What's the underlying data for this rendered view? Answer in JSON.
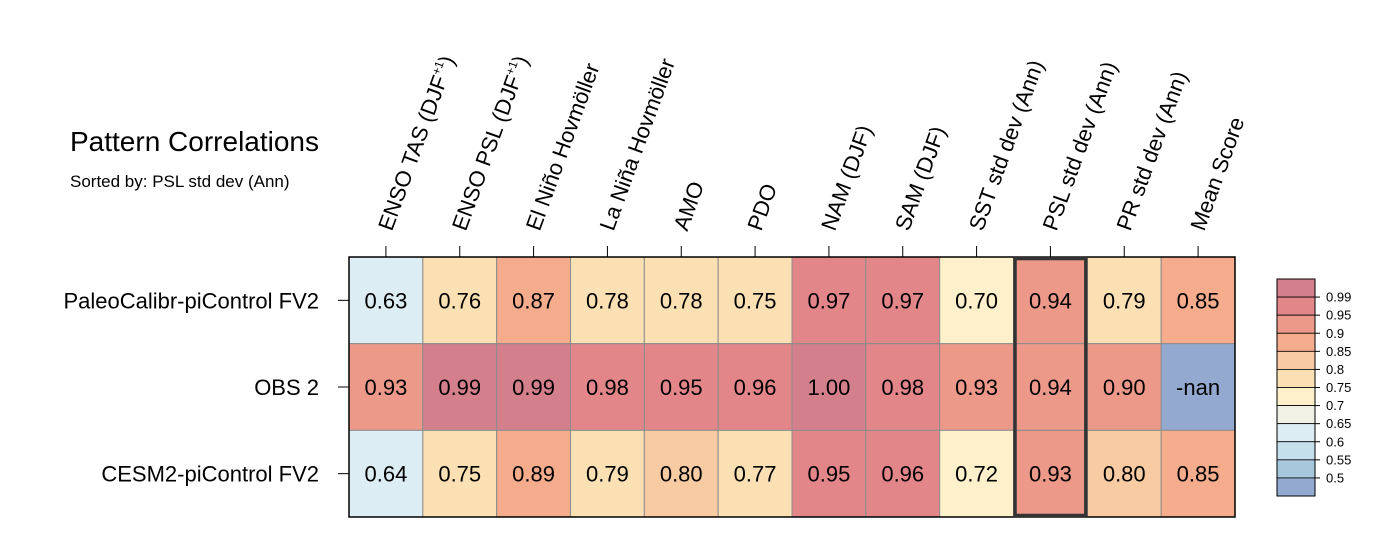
{
  "title": "Pattern Correlations",
  "subtitle": "Sorted by: PSL std dev (Ann)",
  "chart_data": {
    "type": "heatmap",
    "columns": [
      {
        "text": "ENSO TAS (DJF",
        "sup": "+1",
        "tail": ")"
      },
      {
        "text": "ENSO PSL (DJF",
        "sup": "+1",
        "tail": ")"
      },
      {
        "text": "El Niño Hovmöller",
        "sup": "",
        "tail": ""
      },
      {
        "text": "La Niña Hovmöller",
        "sup": "",
        "tail": ""
      },
      {
        "text": "AMO",
        "sup": "",
        "tail": ""
      },
      {
        "text": "PDO",
        "sup": "",
        "tail": ""
      },
      {
        "text": "NAM (DJF)",
        "sup": "",
        "tail": ""
      },
      {
        "text": "SAM (DJF)",
        "sup": "",
        "tail": ""
      },
      {
        "text": "SST std dev (Ann)",
        "sup": "",
        "tail": ""
      },
      {
        "text": "PSL std dev (Ann)",
        "sup": "",
        "tail": ""
      },
      {
        "text": "PR std dev (Ann)",
        "sup": "",
        "tail": ""
      },
      {
        "text": "Mean Score",
        "sup": "",
        "tail": ""
      }
    ],
    "rows": [
      "PaleoCalibr-piControl FV2",
      "OBS 2",
      "CESM2-piControl FV2"
    ],
    "values": [
      [
        0.63,
        0.76,
        0.87,
        0.78,
        0.78,
        0.75,
        0.97,
        0.97,
        0.7,
        0.94,
        0.79,
        0.85
      ],
      [
        0.93,
        0.99,
        0.99,
        0.98,
        0.95,
        0.96,
        1.0,
        0.98,
        0.93,
        0.94,
        0.9,
        null
      ],
      [
        0.64,
        0.75,
        0.89,
        0.79,
        0.8,
        0.77,
        0.95,
        0.96,
        0.72,
        0.93,
        0.8,
        0.85
      ]
    ],
    "labels": [
      [
        "0.63",
        "0.76",
        "0.87",
        "0.78",
        "0.78",
        "0.75",
        "0.97",
        "0.97",
        "0.70",
        "0.94",
        "0.79",
        "0.85"
      ],
      [
        "0.93",
        "0.99",
        "0.99",
        "0.98",
        "0.95",
        "0.96",
        "1.00",
        "0.98",
        "0.93",
        "0.94",
        "0.90",
        "-nan"
      ],
      [
        "0.64",
        "0.75",
        "0.89",
        "0.79",
        "0.80",
        "0.77",
        "0.95",
        "0.96",
        "0.72",
        "0.93",
        "0.80",
        "0.85"
      ]
    ],
    "highlighted_column": "PSL std dev (Ann)",
    "legend": {
      "placement": "right",
      "levels": [
        "0.99",
        "0.95",
        "0.9",
        "0.85",
        "0.8",
        "0.75",
        "0.7",
        "0.65",
        "0.6",
        "0.55",
        "0.5"
      ],
      "bins": [
        {
          "min": 0.99,
          "color": "#D47F8C"
        },
        {
          "min": 0.95,
          "color": "#E3868A"
        },
        {
          "min": 0.9,
          "color": "#EC9989"
        },
        {
          "min": 0.85,
          "color": "#F4AC8C"
        },
        {
          "min": 0.8,
          "color": "#F9CBA2"
        },
        {
          "min": 0.75,
          "color": "#FBE0B3"
        },
        {
          "min": 0.7,
          "color": "#FDF0CA"
        },
        {
          "min": 0.65,
          "color": "#F1F1E6"
        },
        {
          "min": 0.6,
          "color": "#DDEDF4"
        },
        {
          "min": 0.55,
          "color": "#C6DFEC"
        },
        {
          "min": 0.5,
          "color": "#A7C7DD"
        },
        {
          "min": -1.0,
          "color": "#94A9D0"
        }
      ]
    }
  }
}
